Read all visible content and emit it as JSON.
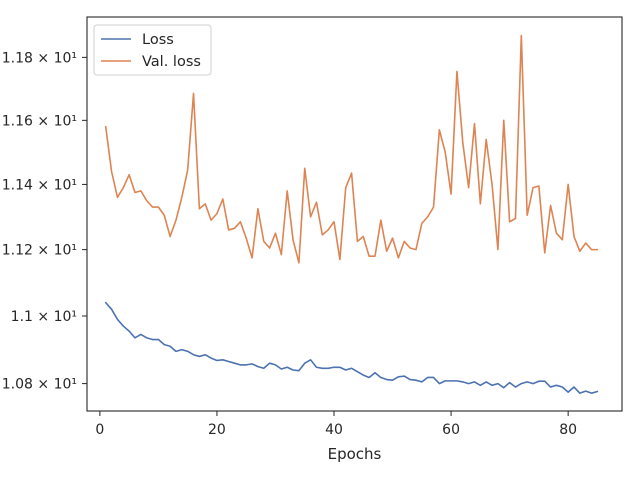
{
  "chart_data": {
    "type": "line",
    "title": "",
    "xlabel": "Epochs",
    "ylabel": "",
    "xlim": [
      -2.2,
      89.2
    ],
    "ylim": [
      10.72,
      11.93
    ],
    "x_scale": "linear",
    "y_scale": "log",
    "grid": false,
    "legend_position": "top-left",
    "x_ticks": [
      {
        "value": 0,
        "label": "0"
      },
      {
        "value": 20,
        "label": "20"
      },
      {
        "value": 40,
        "label": "40"
      },
      {
        "value": 60,
        "label": "60"
      },
      {
        "value": 80,
        "label": "80"
      }
    ],
    "y_ticks": [
      {
        "value": 10.8,
        "label": "1.08 × 10¹"
      },
      {
        "value": 11.0,
        "label": "1.1 × 10¹"
      },
      {
        "value": 11.2,
        "label": "1.12 × 10¹"
      },
      {
        "value": 11.4,
        "label": "1.14 × 10¹"
      },
      {
        "value": 11.6,
        "label": "1.16 × 10¹"
      },
      {
        "value": 11.8,
        "label": "1.18 × 10¹"
      }
    ],
    "x": [
      1,
      2,
      3,
      4,
      5,
      6,
      7,
      8,
      9,
      10,
      11,
      12,
      13,
      14,
      15,
      16,
      17,
      18,
      19,
      20,
      21,
      22,
      23,
      24,
      25,
      26,
      27,
      28,
      29,
      30,
      31,
      32,
      33,
      34,
      35,
      36,
      37,
      38,
      39,
      40,
      41,
      42,
      43,
      44,
      45,
      46,
      47,
      48,
      49,
      50,
      51,
      52,
      53,
      54,
      55,
      56,
      57,
      58,
      59,
      60,
      61,
      62,
      63,
      64,
      65,
      66,
      67,
      68,
      69,
      70,
      71,
      72,
      73,
      74,
      75,
      76,
      77,
      78,
      79,
      80,
      81,
      82,
      83,
      84,
      85
    ],
    "series": [
      {
        "name": "Loss",
        "color": "#4c72b0",
        "values": [
          11.04,
          11.02,
          10.99,
          10.97,
          10.955,
          10.935,
          10.945,
          10.935,
          10.93,
          10.93,
          10.915,
          10.91,
          10.895,
          10.9,
          10.895,
          10.885,
          10.88,
          10.885,
          10.875,
          10.868,
          10.87,
          10.865,
          10.86,
          10.855,
          10.855,
          10.858,
          10.85,
          10.845,
          10.86,
          10.855,
          10.843,
          10.848,
          10.84,
          10.838,
          10.86,
          10.87,
          10.848,
          10.845,
          10.845,
          10.848,
          10.848,
          10.84,
          10.845,
          10.835,
          10.825,
          10.818,
          10.832,
          10.818,
          10.812,
          10.81,
          10.82,
          10.822,
          10.812,
          10.81,
          10.805,
          10.818,
          10.818,
          10.8,
          10.808,
          10.808,
          10.808,
          10.805,
          10.8,
          10.805,
          10.795,
          10.805,
          10.795,
          10.8,
          10.788,
          10.803,
          10.79,
          10.8,
          10.805,
          10.8,
          10.807,
          10.807,
          10.79,
          10.795,
          10.79,
          10.775,
          10.79,
          10.772,
          10.778,
          10.772,
          10.777
        ]
      },
      {
        "name": "Val. loss",
        "color": "#dd8452",
        "values": [
          11.58,
          11.44,
          11.36,
          11.39,
          11.43,
          11.375,
          11.38,
          11.35,
          11.33,
          11.33,
          11.305,
          11.24,
          11.29,
          11.36,
          11.445,
          11.685,
          11.325,
          11.34,
          11.29,
          11.31,
          11.355,
          11.26,
          11.265,
          11.285,
          11.235,
          11.175,
          11.325,
          11.225,
          11.205,
          11.25,
          11.185,
          11.38,
          11.23,
          11.16,
          11.45,
          11.3,
          11.345,
          11.245,
          11.26,
          11.285,
          11.17,
          11.39,
          11.435,
          11.225,
          11.24,
          11.18,
          11.18,
          11.29,
          11.195,
          11.235,
          11.175,
          11.225,
          11.205,
          11.2,
          11.28,
          11.3,
          11.33,
          11.57,
          11.5,
          11.37,
          11.755,
          11.53,
          11.39,
          11.59,
          11.34,
          11.54,
          11.4,
          11.2,
          11.6,
          11.285,
          11.295,
          11.87,
          11.305,
          11.39,
          11.395,
          11.19,
          11.335,
          11.25,
          11.23,
          11.4,
          11.24,
          11.195,
          11.22,
          11.2,
          11.2
        ]
      }
    ]
  }
}
